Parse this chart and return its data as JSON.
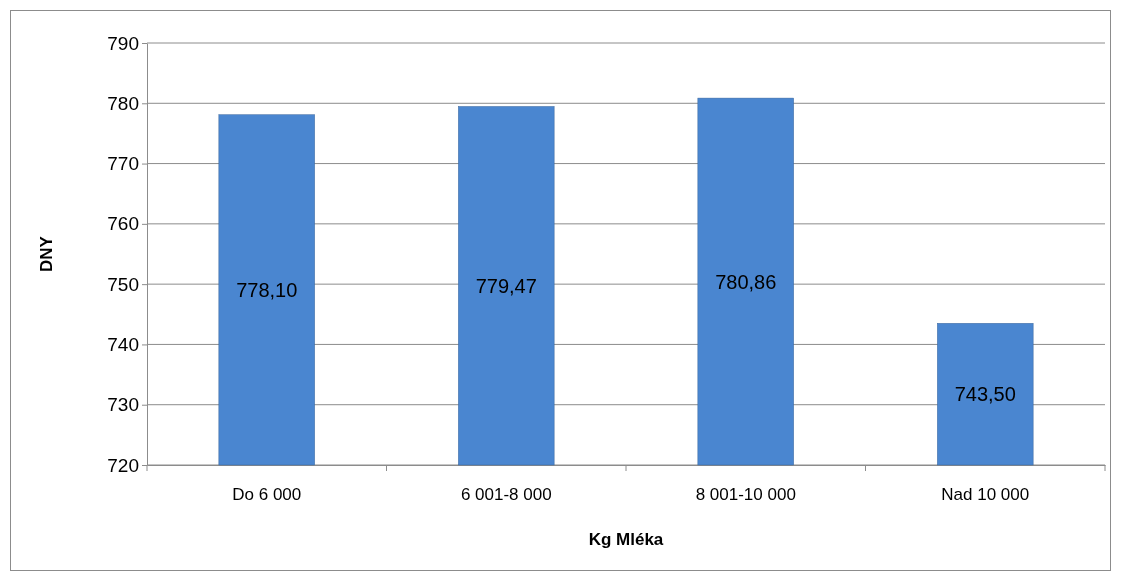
{
  "chart_data": {
    "type": "bar",
    "xlabel": "Kg Mléka",
    "ylabel": "DNY",
    "categories": [
      "Do 6 000",
      "6 001-8 000",
      "8 001-10 000",
      "Nad 10 000"
    ],
    "values": [
      778.1,
      779.47,
      780.86,
      743.5
    ],
    "value_labels": [
      "778,10",
      "779,47",
      "780,86",
      "743,50"
    ],
    "color": "#4a86d0",
    "ylim": [
      720,
      790
    ],
    "yticks": [
      720,
      730,
      740,
      750,
      760,
      770,
      780,
      790
    ],
    "grid": "y"
  }
}
